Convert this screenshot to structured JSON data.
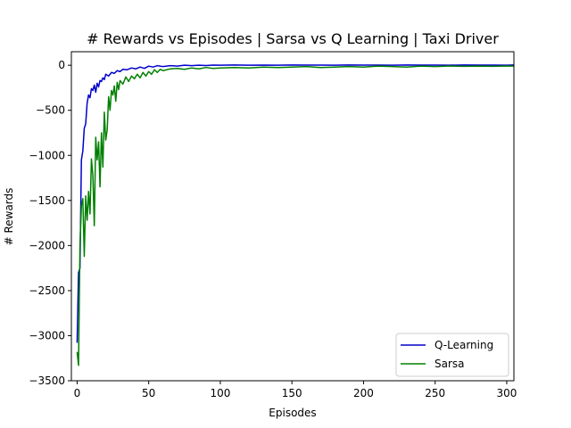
{
  "chart_data": {
    "type": "line",
    "title": "# Rewards vs Episodes | Sarsa vs Q Learning | Taxi Driver",
    "xlabel": "Episodes",
    "ylabel": "# Rewards",
    "xlim": [
      -4,
      305
    ],
    "ylim": [
      -3500,
      150
    ],
    "xticks": [
      0,
      50,
      100,
      150,
      200,
      250,
      300
    ],
    "yticks": [
      0,
      -500,
      -1000,
      -1500,
      -2000,
      -2500,
      -3000,
      -3500
    ],
    "grid": false,
    "legend_position": "lower-right",
    "series": [
      {
        "name": "Q-Learning",
        "color": "#0000cc",
        "x": [
          0,
          1,
          2,
          3,
          4,
          5,
          6,
          7,
          8,
          9,
          10,
          11,
          12,
          13,
          14,
          15,
          16,
          17,
          18,
          19,
          20,
          22,
          24,
          26,
          28,
          30,
          32,
          35,
          38,
          41,
          44,
          47,
          50,
          53,
          56,
          60,
          65,
          70,
          75,
          80,
          85,
          90,
          95,
          100,
          110,
          120,
          130,
          140,
          150,
          160,
          170,
          180,
          190,
          200,
          210,
          220,
          230,
          240,
          250,
          260,
          270,
          280,
          290,
          300,
          305
        ],
        "y": [
          -3080,
          -2300,
          -2250,
          -1050,
          -950,
          -700,
          -650,
          -420,
          -330,
          -360,
          -260,
          -280,
          -220,
          -300,
          -200,
          -240,
          -170,
          -180,
          -140,
          -160,
          -100,
          -120,
          -80,
          -90,
          -60,
          -70,
          -45,
          -50,
          -30,
          -40,
          -20,
          -35,
          -10,
          -20,
          -5,
          -15,
          -5,
          -10,
          0,
          -5,
          0,
          -3,
          2,
          0,
          3,
          0,
          2,
          0,
          3,
          1,
          2,
          0,
          3,
          1,
          2,
          0,
          3,
          1,
          2,
          0,
          3,
          1,
          2,
          0,
          3
        ]
      },
      {
        "name": "Sarsa",
        "color": "#008000",
        "x": [
          0,
          1,
          2,
          3,
          4,
          5,
          6,
          7,
          8,
          9,
          10,
          11,
          12,
          13,
          14,
          15,
          16,
          17,
          18,
          19,
          20,
          21,
          22,
          23,
          24,
          25,
          26,
          27,
          28,
          29,
          30,
          32,
          34,
          36,
          38,
          40,
          42,
          44,
          46,
          48,
          50,
          52,
          54,
          56,
          58,
          60,
          65,
          70,
          75,
          80,
          85,
          90,
          95,
          100,
          110,
          120,
          130,
          140,
          150,
          160,
          170,
          180,
          190,
          200,
          210,
          220,
          230,
          240,
          250,
          260,
          270,
          280,
          290,
          300,
          305
        ],
        "y": [
          -3180,
          -3330,
          -2000,
          -1560,
          -1480,
          -2120,
          -1450,
          -1720,
          -1400,
          -1650,
          -1040,
          -1220,
          -1780,
          -800,
          -1050,
          -850,
          -1350,
          -750,
          -1130,
          -520,
          -830,
          -720,
          -350,
          -500,
          -280,
          -330,
          -230,
          -400,
          -190,
          -270,
          -170,
          -210,
          -130,
          -180,
          -120,
          -150,
          -100,
          -140,
          -80,
          -120,
          -70,
          -100,
          -50,
          -80,
          -45,
          -60,
          -40,
          -35,
          -45,
          -30,
          -40,
          -25,
          -35,
          -30,
          -25,
          -30,
          -20,
          -25,
          -20,
          -15,
          -25,
          -20,
          -15,
          -20,
          -10,
          -15,
          -20,
          -10,
          -15,
          -8,
          -12,
          -10,
          -12,
          -8,
          -10
        ]
      }
    ]
  }
}
